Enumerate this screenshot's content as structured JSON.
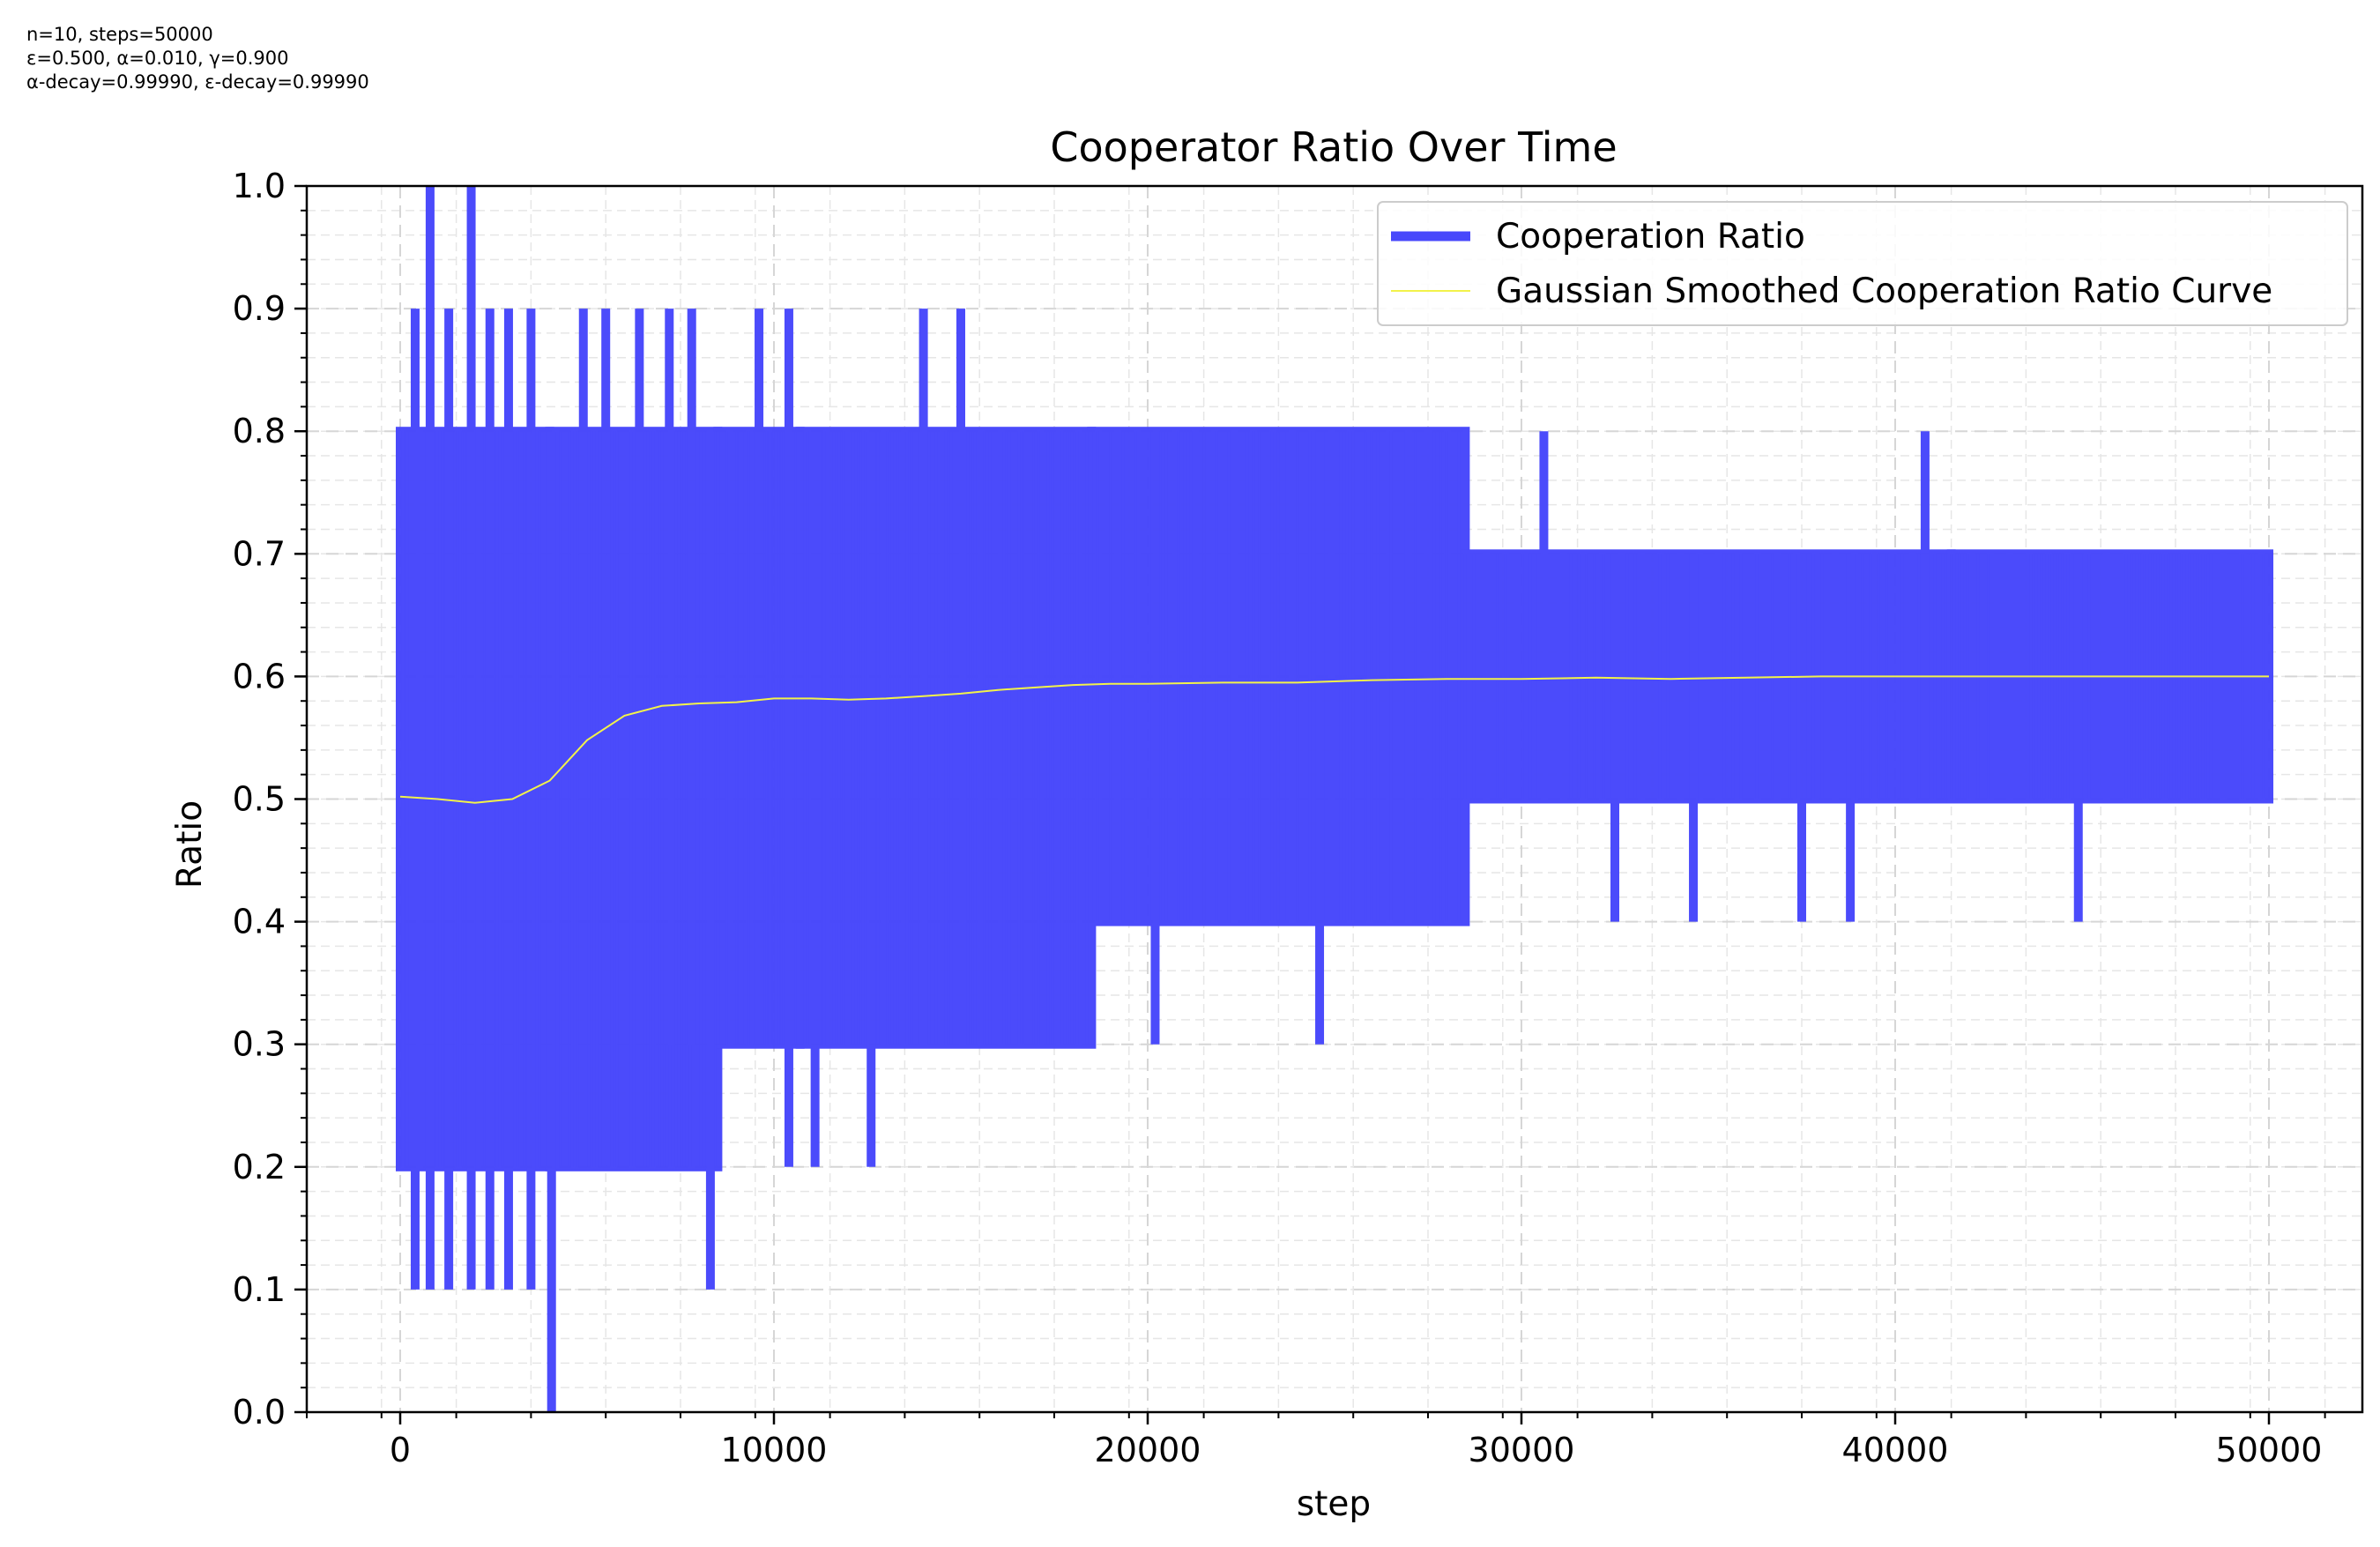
{
  "params": {
    "line1": "n=10, steps=50000",
    "line2": "ε=0.500, α=0.010, γ=0.900",
    "line3": "α-decay=0.99990, ε-decay=0.99990"
  },
  "colors": {
    "ratio": "#4848FB",
    "smoothed": "#F2F24A",
    "grid_major": "#d6d6d6",
    "grid_minor": "#e6e6e6"
  },
  "chart_data": {
    "type": "line",
    "title": "Cooperator Ratio Over Time",
    "xlabel": "step",
    "ylabel": "Ratio",
    "xlim": [
      -2500,
      52500
    ],
    "ylim": [
      0.0,
      1.0
    ],
    "x_ticks": [
      0,
      10000,
      20000,
      30000,
      40000,
      50000
    ],
    "x_tick_labels": [
      "0",
      "10000",
      "20000",
      "30000",
      "40000",
      "50000"
    ],
    "y_ticks": [
      0.0,
      0.1,
      0.2,
      0.3,
      0.4,
      0.5,
      0.6,
      0.7,
      0.8,
      0.9,
      1.0
    ],
    "y_tick_labels": [
      "0.0",
      "0.1",
      "0.2",
      "0.3",
      "0.4",
      "0.5",
      "0.6",
      "0.7",
      "0.8",
      "0.9",
      "1.0"
    ],
    "grid": true,
    "legend_position": "top-right",
    "series": [
      {
        "name": "Cooperation Ratio",
        "style": "thick",
        "bands": [
          {
            "x0": 0,
            "x1": 4000,
            "low": 0.2,
            "high": 0.8
          },
          {
            "x0": 4000,
            "x1": 8500,
            "low": 0.2,
            "high": 0.8
          },
          {
            "x0": 8500,
            "x1": 10700,
            "low": 0.3,
            "high": 0.8
          },
          {
            "x0": 10700,
            "x1": 18500,
            "low": 0.3,
            "high": 0.8
          },
          {
            "x0": 18500,
            "x1": 28500,
            "low": 0.4,
            "high": 0.8
          },
          {
            "x0": 28500,
            "x1": 41500,
            "low": 0.5,
            "high": 0.7
          },
          {
            "x0": 41500,
            "x1": 50000,
            "low": 0.5,
            "high": 0.7
          }
        ],
        "spikes": [
          {
            "x": 800,
            "low": 0.1,
            "high": 1.0
          },
          {
            "x": 1900,
            "low": 0.1,
            "high": 1.0
          },
          {
            "x": 400,
            "low": 0.1,
            "high": 0.9
          },
          {
            "x": 1300,
            "low": 0.1,
            "high": 0.9
          },
          {
            "x": 2400,
            "low": 0.1,
            "high": 0.9
          },
          {
            "x": 2900,
            "low": 0.1,
            "high": 0.9
          },
          {
            "x": 3500,
            "low": 0.1,
            "high": 0.9
          },
          {
            "x": 4050,
            "low": 0.0,
            "high": 0.8
          },
          {
            "x": 4900,
            "low": 0.2,
            "high": 0.9
          },
          {
            "x": 5500,
            "low": 0.2,
            "high": 0.9
          },
          {
            "x": 6400,
            "low": 0.2,
            "high": 0.9
          },
          {
            "x": 7200,
            "low": 0.3,
            "high": 0.9
          },
          {
            "x": 7800,
            "low": 0.3,
            "high": 0.9
          },
          {
            "x": 8300,
            "low": 0.1,
            "high": 0.8
          },
          {
            "x": 9600,
            "low": 0.3,
            "high": 0.9
          },
          {
            "x": 10400,
            "low": 0.2,
            "high": 0.9
          },
          {
            "x": 11100,
            "low": 0.2,
            "high": 0.8
          },
          {
            "x": 12600,
            "low": 0.2,
            "high": 0.8
          },
          {
            "x": 14000,
            "low": 0.3,
            "high": 0.9
          },
          {
            "x": 15000,
            "low": 0.3,
            "high": 0.9
          },
          {
            "x": 16800,
            "low": 0.3,
            "high": 0.8
          },
          {
            "x": 20200,
            "low": 0.3,
            "high": 0.8
          },
          {
            "x": 24600,
            "low": 0.3,
            "high": 0.8
          },
          {
            "x": 27500,
            "low": 0.4,
            "high": 0.8
          },
          {
            "x": 30600,
            "low": 0.5,
            "high": 0.8
          },
          {
            "x": 32500,
            "low": 0.4,
            "high": 0.7
          },
          {
            "x": 34600,
            "low": 0.4,
            "high": 0.7
          },
          {
            "x": 37500,
            "low": 0.4,
            "high": 0.7
          },
          {
            "x": 38800,
            "low": 0.4,
            "high": 0.7
          },
          {
            "x": 40800,
            "low": 0.5,
            "high": 0.8
          },
          {
            "x": 44900,
            "low": 0.4,
            "high": 0.7
          }
        ]
      },
      {
        "name": "Gaussian Smoothed Cooperation Ratio Curve",
        "style": "thin",
        "x": [
          0,
          1000,
          2000,
          3000,
          4000,
          5000,
          6000,
          7000,
          8000,
          9000,
          10000,
          11000,
          12000,
          13000,
          14000,
          15000,
          16000,
          17000,
          18000,
          19000,
          20000,
          22000,
          24000,
          26000,
          28000,
          30000,
          32000,
          34000,
          36000,
          38000,
          40000,
          42000,
          44000,
          46000,
          48000,
          50000
        ],
        "y": [
          0.502,
          0.5,
          0.497,
          0.5,
          0.515,
          0.548,
          0.568,
          0.576,
          0.578,
          0.579,
          0.582,
          0.582,
          0.581,
          0.582,
          0.584,
          0.586,
          0.589,
          0.591,
          0.593,
          0.594,
          0.594,
          0.595,
          0.595,
          0.597,
          0.598,
          0.598,
          0.599,
          0.598,
          0.599,
          0.6,
          0.6,
          0.6,
          0.6,
          0.6,
          0.6,
          0.6
        ]
      }
    ]
  }
}
